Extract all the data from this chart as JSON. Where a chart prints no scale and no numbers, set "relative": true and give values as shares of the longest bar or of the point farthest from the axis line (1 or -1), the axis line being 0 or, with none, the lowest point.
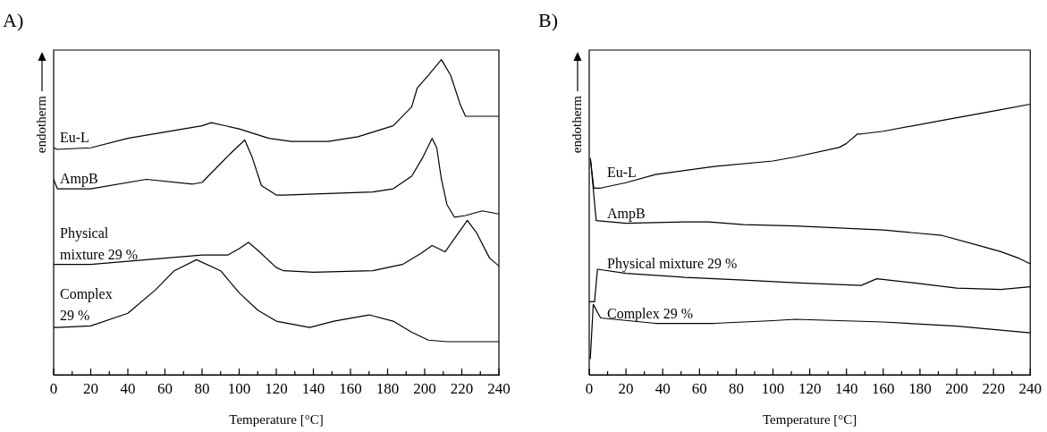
{
  "chart_data": [
    {
      "type": "line",
      "title": "A)",
      "xlabel": "Temperature [°C]",
      "ylabel": "endotherm",
      "relative": true,
      "grid": false,
      "legend": false,
      "marker": "none",
      "line_style": "solid",
      "xlim": [
        0,
        240
      ],
      "xticks": [
        0,
        {
          "value": 10,
          "label": null
        },
        20,
        {
          "value": 30,
          "label": null
        },
        40,
        {
          "value": 50,
          "label": null
        },
        60,
        {
          "value": 70,
          "label": null
        },
        80,
        {
          "value": 90,
          "label": null
        },
        100,
        {
          "value": 110,
          "label": null
        },
        120,
        {
          "value": 130,
          "label": null
        },
        140,
        {
          "value": 150,
          "label": null
        },
        160,
        {
          "value": 170,
          "label": null
        },
        180,
        {
          "value": 190,
          "label": null
        },
        200,
        {
          "value": 210,
          "label": null
        },
        220,
        {
          "value": 230,
          "label": null
        },
        240
      ],
      "series": [
        {
          "name": "Eu-L",
          "color": "#000000",
          "x": [
            0,
            2,
            20,
            40,
            60,
            80,
            85,
            100,
            116,
            128,
            148,
            164,
            183,
            193,
            196,
            202,
            209,
            214,
            219,
            222,
            227,
            235,
            240
          ],
          "values": [
            0.72,
            0.715,
            0.72,
            0.75,
            0.77,
            0.79,
            0.8,
            0.78,
            0.75,
            0.74,
            0.74,
            0.755,
            0.79,
            0.85,
            0.91,
            0.95,
            1.0,
            0.95,
            0.86,
            0.82,
            0.82,
            0.82,
            0.82
          ]
        },
        {
          "name": "AmpB",
          "color": "#000000",
          "x": [
            0,
            2,
            20,
            50,
            75,
            80,
            95,
            103,
            107,
            112,
            120,
            124,
            148,
            172,
            183,
            193,
            199,
            204,
            206.5,
            209,
            212,
            216,
            222,
            231,
            240
          ],
          "values": [
            0.62,
            0.59,
            0.59,
            0.62,
            0.605,
            0.61,
            0.7,
            0.745,
            0.69,
            0.6,
            0.57,
            0.57,
            0.575,
            0.58,
            0.59,
            0.63,
            0.69,
            0.75,
            0.72,
            0.62,
            0.54,
            0.5,
            0.505,
            0.52,
            0.51
          ]
        },
        {
          "name": "Physical mixture 29 %",
          "color": "#000000",
          "x": [
            0,
            20,
            40,
            60,
            80,
            90,
            94,
            100,
            105,
            110,
            120,
            124,
            140,
            172,
            188,
            198,
            204,
            211,
            217,
            223,
            228,
            235,
            240
          ],
          "values": [
            0.35,
            0.35,
            0.36,
            0.37,
            0.38,
            0.38,
            0.38,
            0.4,
            0.42,
            0.395,
            0.34,
            0.33,
            0.325,
            0.33,
            0.35,
            0.385,
            0.41,
            0.39,
            0.44,
            0.49,
            0.45,
            0.37,
            0.345
          ]
        },
        {
          "name": "Complex 29 %",
          "color": "#000000",
          "x": [
            0,
            2,
            20,
            40,
            55,
            65,
            77,
            90,
            100,
            110,
            120,
            138,
            151,
            170,
            183,
            193,
            202,
            212,
            240
          ],
          "values": [
            0.15,
            0.15,
            0.155,
            0.195,
            0.27,
            0.33,
            0.365,
            0.33,
            0.26,
            0.205,
            0.17,
            0.15,
            0.17,
            0.19,
            0.17,
            0.135,
            0.11,
            0.105,
            0.105
          ]
        }
      ]
    },
    {
      "type": "line",
      "title": "B)",
      "xlabel": "Temperature [°C]",
      "ylabel": "endotherm",
      "relative": true,
      "grid": false,
      "legend": false,
      "marker": "none",
      "line_style": "solid",
      "xlim": [
        0,
        240
      ],
      "xticks": [
        0,
        {
          "value": 10,
          "label": null
        },
        20,
        {
          "value": 30,
          "label": null
        },
        40,
        {
          "value": 50,
          "label": null
        },
        60,
        {
          "value": 70,
          "label": null
        },
        80,
        {
          "value": 90,
          "label": null
        },
        100,
        {
          "value": 110,
          "label": null
        },
        120,
        {
          "value": 130,
          "label": null
        },
        140,
        {
          "value": 150,
          "label": null
        },
        160,
        {
          "value": 170,
          "label": null
        },
        180,
        {
          "value": 190,
          "label": null
        },
        200,
        {
          "value": 210,
          "label": null
        },
        220,
        {
          "value": 230,
          "label": null
        },
        240
      ],
      "series": [
        {
          "name": "Eu-L",
          "color": "#000000",
          "x": [
            0.6,
            2.5,
            6.2,
            20,
            36,
            68,
            100,
            112,
            136,
            140,
            146,
            148,
            160,
            192,
            224,
            240
          ],
          "values": [
            0.8,
            0.69,
            0.69,
            0.71,
            0.74,
            0.77,
            0.79,
            0.805,
            0.84,
            0.855,
            0.89,
            0.89,
            0.9,
            0.94,
            0.98,
            1.0
          ]
        },
        {
          "name": "AmpB",
          "color": "#000000",
          "x": [
            0.8,
            3.8,
            20,
            52,
            65,
            84,
            112,
            160,
            192,
            211,
            224,
            234,
            240
          ],
          "values": [
            0.79,
            0.57,
            0.56,
            0.565,
            0.565,
            0.555,
            0.55,
            0.535,
            0.515,
            0.48,
            0.455,
            0.43,
            0.41
          ]
        },
        {
          "name": "Physical mixture 29 %",
          "color": "#000000",
          "x": [
            0,
            2.9,
            4.5,
            20,
            52,
            84,
            112,
            148,
            156.5,
            176,
            200,
            224,
            240
          ],
          "values": [
            0.27,
            0.27,
            0.39,
            0.375,
            0.36,
            0.35,
            0.34,
            0.33,
            0.355,
            0.34,
            0.32,
            0.315,
            0.325
          ]
        },
        {
          "name": "Complex 29 %",
          "color": "#000000",
          "x": [
            0.6,
            2.2,
            6.2,
            36,
            68,
            100,
            112,
            160,
            200,
            240
          ],
          "values": [
            0.06,
            0.26,
            0.21,
            0.19,
            0.19,
            0.2,
            0.205,
            0.195,
            0.18,
            0.155
          ]
        }
      ]
    }
  ]
}
